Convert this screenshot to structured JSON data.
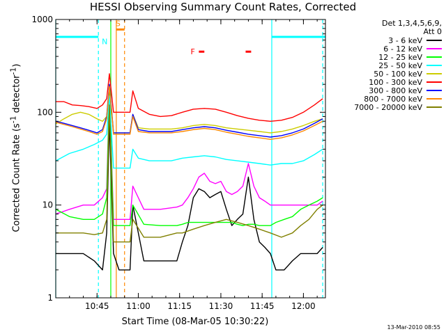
{
  "title": "HESSI Observing Summary Count Rates, Corrected",
  "footer_stamp": "13-Mar-2010 08:55",
  "legend_title": [
    "Det 1,3,4,5,6,9,",
    "Att 0"
  ],
  "chart_data": {
    "type": "line",
    "title": "HESSI Observing Summary Count Rates, Corrected",
    "xlabel": "Start Time (08-Mar-05 10:30:22)",
    "ylabel": "Corrected Count Rate (s^-1 detector^-1)",
    "ylabel_parts": {
      "main": "Corrected Count Rate (s",
      "sup1": "-1",
      "mid": " detector",
      "sup2": "-1",
      "end": ")"
    },
    "x_unit": "minutes after 10:30",
    "xlim": [
      0,
      98
    ],
    "ylim": [
      1,
      1000
    ],
    "yscale": "log",
    "x_ticks": [
      {
        "x": 15,
        "label": "10:45"
      },
      {
        "x": 30,
        "label": "11:00"
      },
      {
        "x": 45,
        "label": "11:15"
      },
      {
        "x": 60,
        "label": "11:30"
      },
      {
        "x": 75,
        "label": "11:45"
      },
      {
        "x": 90,
        "label": "12:00"
      }
    ],
    "y_ticks": [
      {
        "y": 1,
        "label": "1"
      },
      {
        "y": 10,
        "label": "10"
      },
      {
        "y": 100,
        "label": "100"
      },
      {
        "y": 1000,
        "label": "1000"
      }
    ],
    "grid": false,
    "legend_position": "top-right",
    "annotations": {
      "night_bars": {
        "color": "#00ffff",
        "y": 650,
        "segments": [
          [
            0,
            15.5
          ],
          [
            78.5,
            98
          ]
        ]
      },
      "saa_bar": {
        "label": "S",
        "color": "#ff8800",
        "y": 780,
        "x": [
          22,
          25
        ]
      },
      "night_label": {
        "label": "N",
        "x": 17.5,
        "y": 580,
        "color": "#00ffff"
      },
      "flare_label": {
        "label": "F",
        "x": 50,
        "y": 450,
        "color": "#ff0000"
      },
      "flare_bars": {
        "color": "#ff0000",
        "y": 450,
        "segments": [
          [
            52,
            54
          ],
          [
            69,
            71
          ]
        ]
      },
      "vlines": [
        {
          "x": 0,
          "color": "#00ffff",
          "style": "solid"
        },
        {
          "x": 15.5,
          "color": "#00ffff",
          "style": "dashed"
        },
        {
          "x": 20.0,
          "color": "#00ff00",
          "style": "solid"
        },
        {
          "x": 22.0,
          "color": "#ff8800",
          "style": "solid"
        },
        {
          "x": 25.0,
          "color": "#ff8800",
          "style": "dashed"
        },
        {
          "x": 78.5,
          "color": "#00ffff",
          "style": "solid"
        },
        {
          "x": 97.0,
          "color": "#00ffff",
          "style": "dashed"
        }
      ]
    },
    "series": [
      {
        "name": "3 - 6 keV",
        "color": "#000000",
        "x": [
          0,
          5,
          10,
          14,
          17,
          18.5,
          19.5,
          21,
          23,
          27,
          28,
          32,
          38,
          44,
          46,
          48,
          50,
          52,
          54,
          56,
          58,
          60,
          62,
          64,
          66,
          68,
          70,
          72,
          74,
          76,
          78,
          80,
          83,
          86,
          89,
          92,
          95,
          97
        ],
        "y": [
          3,
          3,
          3,
          2.5,
          2,
          5,
          80,
          3,
          2,
          2,
          10,
          2.5,
          2.5,
          2.5,
          4,
          6,
          12,
          15,
          14,
          12,
          13,
          14,
          9,
          6,
          7,
          8,
          20,
          7,
          4,
          3.5,
          3,
          2,
          2,
          2.5,
          3,
          3,
          3,
          3.5
        ]
      },
      {
        "name": "6 - 12 keV",
        "color": "#ff00ff",
        "x": [
          0,
          5,
          10,
          14,
          17,
          18.5,
          19.5,
          21,
          23,
          27,
          28,
          32,
          38,
          44,
          46,
          48,
          50,
          52,
          54,
          56,
          58,
          60,
          62,
          64,
          66,
          68,
          70,
          72,
          74,
          76,
          78,
          80,
          83,
          86,
          89,
          92,
          95,
          97
        ],
        "y": [
          8,
          9,
          10,
          10,
          12,
          15,
          170,
          7,
          7,
          7,
          16,
          9,
          9,
          9.5,
          10,
          12,
          15,
          20,
          22,
          18,
          17,
          18,
          14,
          13,
          14,
          16,
          28,
          16,
          12,
          11,
          10,
          10,
          10,
          10,
          10,
          10,
          10,
          11
        ]
      },
      {
        "name": "12 - 25 keV",
        "color": "#00ff00",
        "x": [
          0,
          5,
          10,
          14,
          17,
          18.5,
          19.5,
          21,
          23,
          27,
          28,
          32,
          38,
          44,
          46,
          48,
          50,
          52,
          54,
          56,
          58,
          60,
          62,
          64,
          66,
          68,
          70,
          72,
          74,
          76,
          78,
          80,
          83,
          86,
          89,
          92,
          95,
          97
        ],
        "y": [
          9,
          7.5,
          7,
          7,
          8,
          12,
          160,
          6,
          6,
          6,
          10,
          6.2,
          6,
          6,
          6.2,
          6.5,
          6.5,
          6.5,
          6.5,
          6.5,
          6.5,
          6.5,
          6.5,
          6.5,
          6.2,
          6,
          6.2,
          6.2,
          6,
          6,
          6,
          6.5,
          7,
          7.5,
          9,
          10,
          11,
          12
        ]
      },
      {
        "name": "25 - 50 keV",
        "color": "#00ffff",
        "x": [
          0,
          5,
          10,
          14,
          17,
          18.5,
          19.5,
          21,
          23,
          27,
          28,
          30,
          34,
          38,
          42,
          46,
          50,
          54,
          58,
          62,
          66,
          70,
          74,
          78,
          82,
          86,
          90,
          94,
          97
        ],
        "y": [
          30,
          36,
          40,
          45,
          50,
          58,
          150,
          25,
          25,
          25,
          40,
          32,
          30,
          30,
          30,
          32,
          33,
          34,
          33,
          31,
          30,
          29,
          28,
          27,
          28,
          28,
          30,
          35,
          40
        ]
      },
      {
        "name": "50 - 100 keV",
        "color": "#cccc00",
        "x": [
          0,
          3,
          6,
          9,
          12,
          15,
          17,
          18.5,
          19.5,
          21,
          23,
          27,
          28,
          30,
          34,
          38,
          42,
          46,
          50,
          54,
          58,
          62,
          66,
          70,
          74,
          78,
          82,
          86,
          90,
          94,
          97
        ],
        "y": [
          75,
          85,
          95,
          100,
          95,
          85,
          80,
          90,
          200,
          60,
          60,
          60,
          95,
          68,
          66,
          66,
          66,
          68,
          72,
          74,
          72,
          68,
          66,
          64,
          62,
          60,
          62,
          66,
          72,
          80,
          85
        ]
      },
      {
        "name": "100 - 300 keV",
        "color": "#ff0000",
        "x": [
          0,
          3,
          6,
          9,
          12,
          15,
          17,
          18.5,
          19.5,
          21,
          23,
          27,
          28,
          30,
          34,
          38,
          42,
          46,
          50,
          54,
          58,
          62,
          66,
          70,
          74,
          78,
          82,
          86,
          90,
          94,
          97
        ],
        "y": [
          130,
          130,
          120,
          118,
          115,
          110,
          120,
          140,
          260,
          100,
          100,
          100,
          170,
          110,
          95,
          90,
          92,
          100,
          108,
          110,
          108,
          100,
          92,
          86,
          82,
          80,
          82,
          88,
          100,
          120,
          140
        ]
      },
      {
        "name": "300 - 800 keV",
        "color": "#0000ff",
        "x": [
          0,
          3,
          6,
          9,
          12,
          15,
          17,
          18.5,
          19.5,
          21,
          23,
          27,
          28,
          30,
          34,
          38,
          42,
          46,
          50,
          54,
          58,
          62,
          66,
          70,
          74,
          78,
          82,
          86,
          90,
          94,
          97
        ],
        "y": [
          80,
          76,
          72,
          68,
          64,
          60,
          65,
          90,
          200,
          60,
          60,
          60,
          95,
          65,
          62,
          62,
          62,
          65,
          68,
          70,
          68,
          64,
          61,
          58,
          56,
          54,
          56,
          60,
          66,
          76,
          85
        ]
      },
      {
        "name": "800 - 7000 keV",
        "color": "#ff8800",
        "x": [
          0,
          3,
          6,
          9,
          12,
          15,
          17,
          18.5,
          19.5,
          21,
          23,
          27,
          28,
          30,
          34,
          38,
          42,
          46,
          50,
          54,
          58,
          62,
          66,
          70,
          74,
          78,
          82,
          86,
          90,
          94,
          97
        ],
        "y": [
          78,
          74,
          70,
          66,
          62,
          58,
          62,
          85,
          190,
          58,
          58,
          58,
          90,
          62,
          60,
          60,
          60,
          62,
          65,
          67,
          65,
          61,
          58,
          55,
          53,
          51,
          53,
          57,
          63,
          72,
          80
        ]
      },
      {
        "name": "7000 - 20000 keV",
        "color": "#808000",
        "x": [
          0,
          5,
          10,
          14,
          17,
          18.5,
          19.5,
          21,
          23,
          27,
          28,
          32,
          38,
          44,
          46,
          50,
          54,
          58,
          62,
          66,
          70,
          74,
          78,
          82,
          86,
          89,
          92,
          95,
          97
        ],
        "y": [
          5,
          5,
          5,
          4.8,
          5,
          7,
          120,
          4,
          4,
          4,
          7,
          4.5,
          4.5,
          5,
          5,
          5.5,
          6,
          6.5,
          7,
          6.5,
          6,
          5.5,
          5,
          4.5,
          5,
          6,
          7,
          9,
          10
        ]
      }
    ]
  }
}
